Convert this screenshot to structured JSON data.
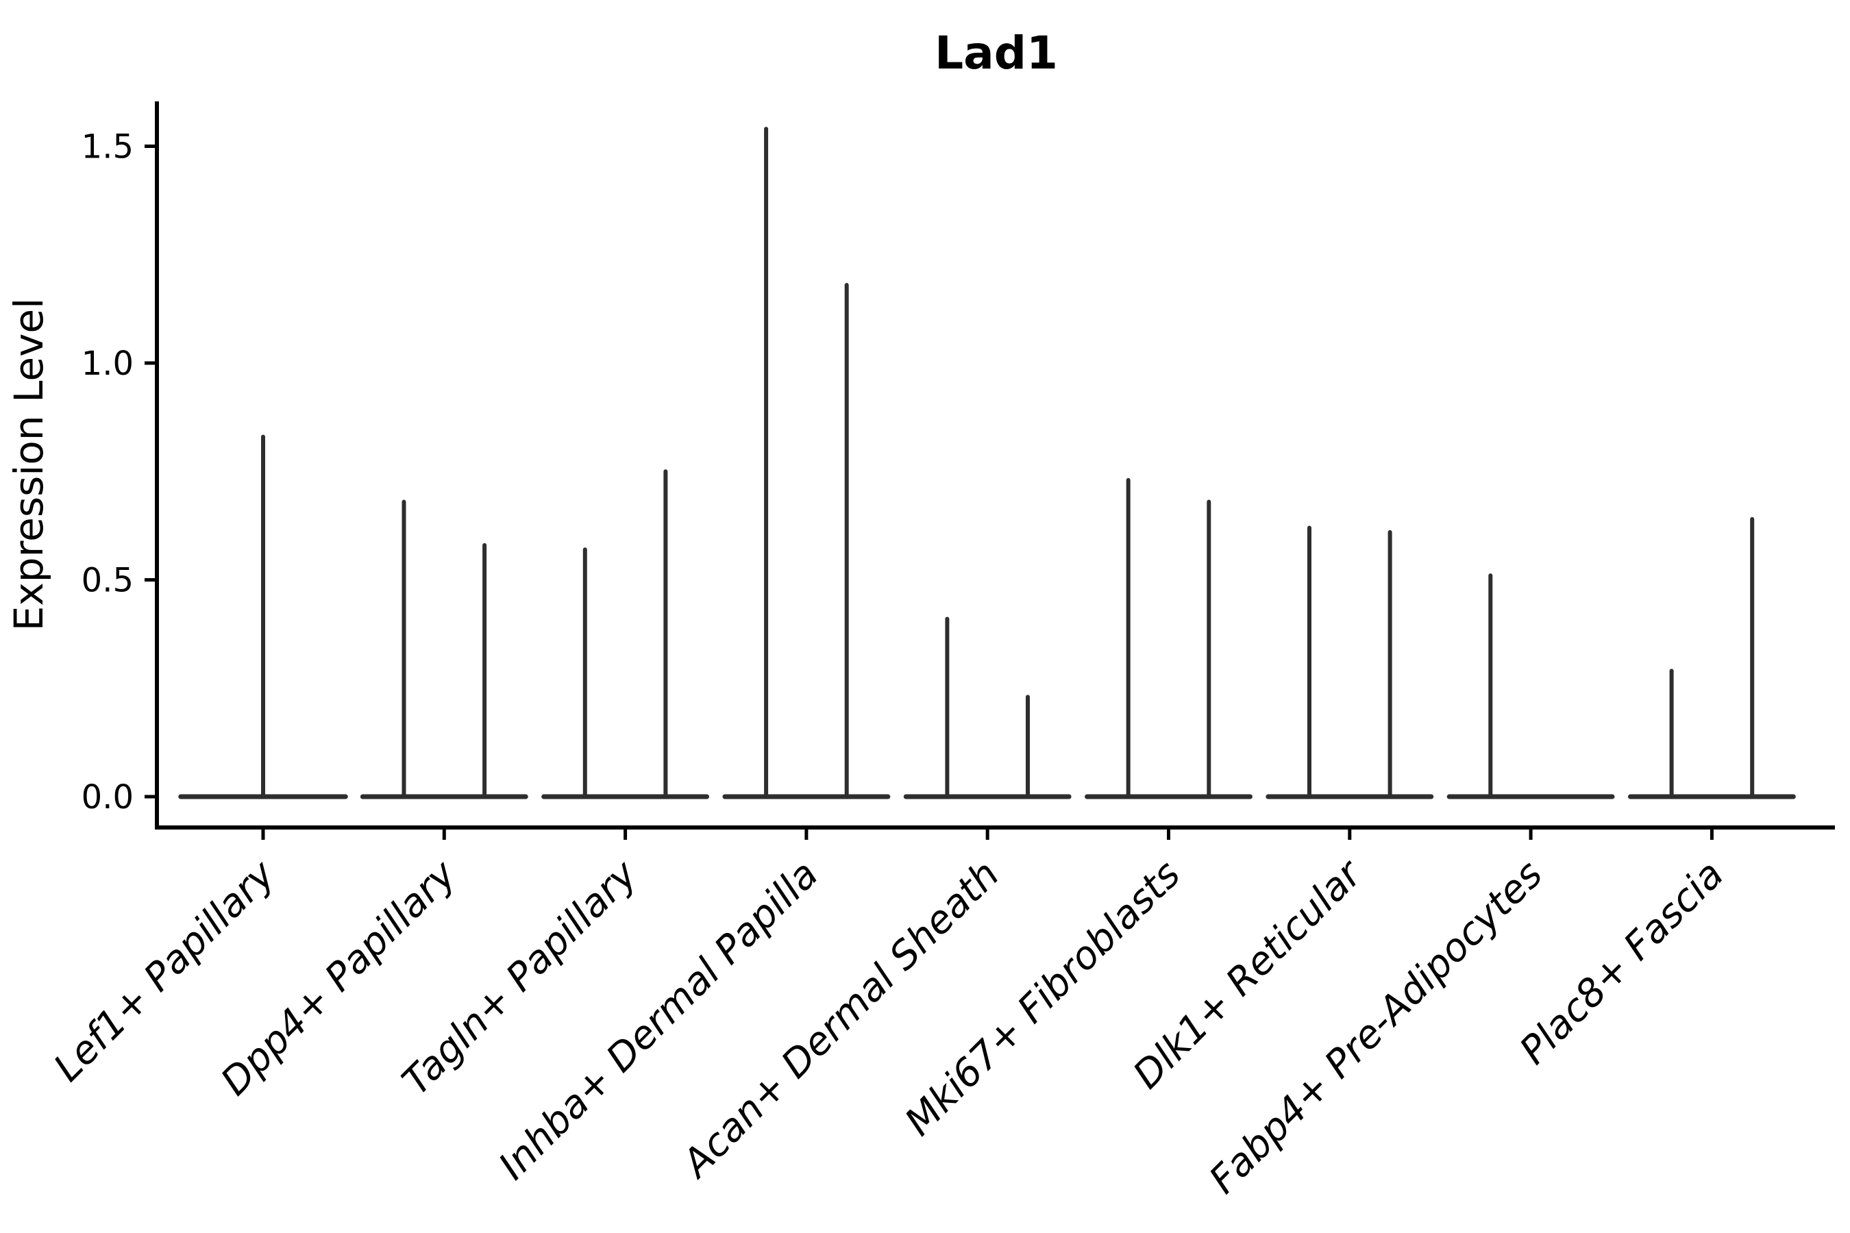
{
  "chart_data": {
    "type": "violin",
    "title": "Lad1",
    "ylabel": "Expression Level",
    "xlabel": "",
    "legend": "none",
    "grid": false,
    "background": "#ffffff",
    "ylim": [
      -0.07,
      1.6
    ],
    "xlim": [
      -0.59,
      8.68
    ],
    "y_ticks": {
      "values": [
        0.0,
        0.5,
        1.0,
        1.5
      ],
      "labels": [
        "0.0",
        "0.5",
        "1.0",
        "1.5"
      ]
    },
    "categories": [
      "Lef1+ Papillary",
      "Dpp4+ Papillary",
      "Tagln+ Papillary",
      "Inhba+ Dermal Papilla",
      "Acan+ Dermal Sheath",
      "Mki67+ Fibroblasts",
      "Dlk1+ Reticular",
      "Fabp4+ Pre-Adipocytes",
      "Plac8+ Fascia"
    ],
    "violins": [
      {
        "category": "Lef1+ Papillary",
        "parts": [
          {
            "position": 0.0,
            "width": 0.91,
            "max_expression": 0.83
          }
        ]
      },
      {
        "category": "Dpp4+ Papillary",
        "parts": [
          {
            "position": -0.2225,
            "width": 0.455,
            "max_expression": 0.68
          },
          {
            "position": 0.2225,
            "width": 0.455,
            "max_expression": 0.58
          }
        ]
      },
      {
        "category": "Tagln+ Papillary",
        "parts": [
          {
            "position": -0.2225,
            "width": 0.455,
            "max_expression": 0.57
          },
          {
            "position": 0.2225,
            "width": 0.455,
            "max_expression": 0.75
          }
        ]
      },
      {
        "category": "Inhba+ Dermal Papilla",
        "parts": [
          {
            "position": -0.2225,
            "width": 0.455,
            "max_expression": 1.54
          },
          {
            "position": 0.2225,
            "width": 0.455,
            "max_expression": 1.18
          }
        ]
      },
      {
        "category": "Acan+ Dermal Sheath",
        "parts": [
          {
            "position": -0.2225,
            "width": 0.455,
            "max_expression": 0.41
          },
          {
            "position": 0.2225,
            "width": 0.455,
            "max_expression": 0.23
          }
        ]
      },
      {
        "category": "Mki67+ Fibroblasts",
        "parts": [
          {
            "position": -0.2225,
            "width": 0.455,
            "max_expression": 0.73
          },
          {
            "position": 0.2225,
            "width": 0.455,
            "max_expression": 0.68
          }
        ]
      },
      {
        "category": "Dlk1+ Reticular",
        "parts": [
          {
            "position": -0.2225,
            "width": 0.455,
            "max_expression": 0.62
          },
          {
            "position": 0.2225,
            "width": 0.455,
            "max_expression": 0.61
          }
        ]
      },
      {
        "category": "Fabp4+ Pre-Adipocytes",
        "parts": [
          {
            "position": -0.2225,
            "width": 0.455,
            "max_expression": 0.51
          },
          {
            "position": 0.2225,
            "width": 0.455,
            "max_expression": 0.0
          }
        ]
      },
      {
        "category": "Plac8+ Fascia",
        "parts": [
          {
            "position": -0.2225,
            "width": 0.455,
            "max_expression": 0.29
          },
          {
            "position": 0.2225,
            "width": 0.455,
            "max_expression": 0.64
          }
        ]
      }
    ],
    "colors": {
      "violin_stroke": "#2e2e2e",
      "axis": "#000000",
      "text": "#000000",
      "background": "#ffffff"
    }
  }
}
